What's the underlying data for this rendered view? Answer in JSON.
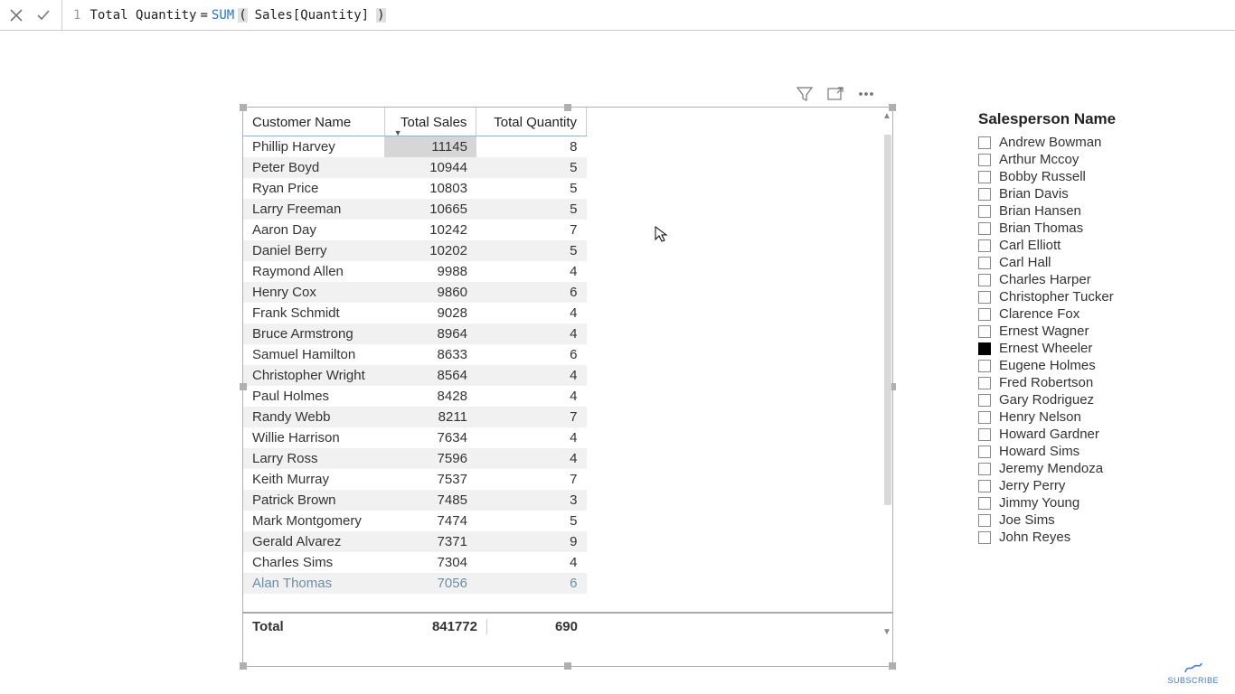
{
  "formula": {
    "line_number": "1",
    "measure_name": "Total Quantity",
    "equals": " = ",
    "func": "SUM",
    "open": "(",
    "arg_prefix": " ",
    "arg": "Sales[Quantity]",
    "arg_suffix": " ",
    "close": ")"
  },
  "table": {
    "columns": [
      "Customer Name",
      "Total Sales",
      "Total Quantity"
    ],
    "sorted_col_index": 1,
    "rows": [
      [
        "Phillip Harvey",
        "11145",
        "8"
      ],
      [
        "Peter Boyd",
        "10944",
        "5"
      ],
      [
        "Ryan Price",
        "10803",
        "5"
      ],
      [
        "Larry Freeman",
        "10665",
        "5"
      ],
      [
        "Aaron Day",
        "10242",
        "7"
      ],
      [
        "Daniel Berry",
        "10202",
        "5"
      ],
      [
        "Raymond Allen",
        "9988",
        "4"
      ],
      [
        "Henry Cox",
        "9860",
        "6"
      ],
      [
        "Frank Schmidt",
        "9028",
        "4"
      ],
      [
        "Bruce Armstrong",
        "8964",
        "4"
      ],
      [
        "Samuel Hamilton",
        "8633",
        "6"
      ],
      [
        "Christopher Wright",
        "8564",
        "4"
      ],
      [
        "Paul Holmes",
        "8428",
        "4"
      ],
      [
        "Randy Webb",
        "8211",
        "7"
      ],
      [
        "Willie Harrison",
        "7634",
        "4"
      ],
      [
        "Larry Ross",
        "7596",
        "4"
      ],
      [
        "Keith Murray",
        "7537",
        "7"
      ],
      [
        "Patrick Brown",
        "7485",
        "3"
      ],
      [
        "Mark Montgomery",
        "7474",
        "5"
      ],
      [
        "Gerald Alvarez",
        "7371",
        "9"
      ],
      [
        "Charles Sims",
        "7304",
        "4"
      ]
    ],
    "partial_next": [
      "Alan Thomas",
      "7056",
      "6"
    ],
    "total_label": "Total",
    "total_sales": "841772",
    "total_qty": "690",
    "selected_cell": {
      "row": 0,
      "col": 1
    }
  },
  "slicer": {
    "title": "Salesperson Name",
    "items": [
      {
        "label": "Andrew Bowman",
        "checked": false
      },
      {
        "label": "Arthur Mccoy",
        "checked": false
      },
      {
        "label": "Bobby Russell",
        "checked": false
      },
      {
        "label": "Brian Davis",
        "checked": false
      },
      {
        "label": "Brian Hansen",
        "checked": false
      },
      {
        "label": "Brian Thomas",
        "checked": false
      },
      {
        "label": "Carl Elliott",
        "checked": false
      },
      {
        "label": "Carl Hall",
        "checked": false
      },
      {
        "label": "Charles Harper",
        "checked": false
      },
      {
        "label": "Christopher Tucker",
        "checked": false
      },
      {
        "label": "Clarence Fox",
        "checked": false
      },
      {
        "label": "Ernest Wagner",
        "checked": false
      },
      {
        "label": "Ernest Wheeler",
        "checked": true
      },
      {
        "label": "Eugene Holmes",
        "checked": false
      },
      {
        "label": "Fred Robertson",
        "checked": false
      },
      {
        "label": "Gary Rodriguez",
        "checked": false
      },
      {
        "label": "Henry Nelson",
        "checked": false
      },
      {
        "label": "Howard Gardner",
        "checked": false
      },
      {
        "label": "Howard Sims",
        "checked": false
      },
      {
        "label": "Jeremy Mendoza",
        "checked": false
      },
      {
        "label": "Jerry Perry",
        "checked": false
      },
      {
        "label": "Jimmy Young",
        "checked": false
      },
      {
        "label": "Joe Sims",
        "checked": false
      },
      {
        "label": "John Reyes",
        "checked": false
      }
    ]
  },
  "subscribe_label": "SUBSCRIBE"
}
